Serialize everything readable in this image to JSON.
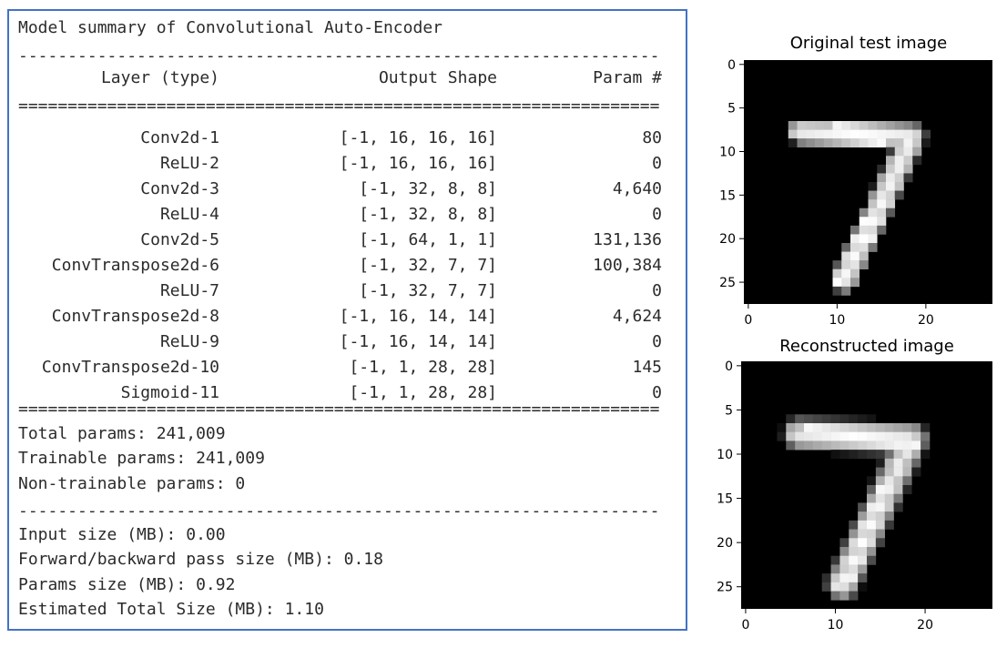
{
  "summary": {
    "title": "Model summary of Convolutional Auto-Encoder",
    "separator_dash": "-----------------------------------------------------------------",
    "separator_eq": "=================================================================",
    "headers": {
      "layer": "Layer (type)",
      "shape": "Output Shape",
      "param": "Param #"
    },
    "rows": [
      {
        "layer": "Conv2d-1",
        "shape": "[-1, 16, 16, 16]",
        "param": "80"
      },
      {
        "layer": "ReLU-2",
        "shape": "[-1, 16, 16, 16]",
        "param": "0"
      },
      {
        "layer": "Conv2d-3",
        "shape": "[-1, 32, 8, 8]",
        "param": "4,640"
      },
      {
        "layer": "ReLU-4",
        "shape": "[-1, 32, 8, 8]",
        "param": "0"
      },
      {
        "layer": "Conv2d-5",
        "shape": "[-1, 64, 1, 1]",
        "param": "131,136"
      },
      {
        "layer": "ConvTranspose2d-6",
        "shape": "[-1, 32, 7, 7]",
        "param": "100,384"
      },
      {
        "layer": "ReLU-7",
        "shape": "[-1, 32, 7, 7]",
        "param": "0"
      },
      {
        "layer": "ConvTranspose2d-8",
        "shape": "[-1, 16, 14, 14]",
        "param": "4,624"
      },
      {
        "layer": "ReLU-9",
        "shape": "[-1, 16, 14, 14]",
        "param": "0"
      },
      {
        "layer": "ConvTranspose2d-10",
        "shape": "[-1, 1, 28, 28]",
        "param": "145"
      },
      {
        "layer": "Sigmoid-11",
        "shape": "[-1, 1, 28, 28]",
        "param": "0"
      }
    ],
    "totals": [
      "Total params: 241,009",
      "Trainable params: 241,009",
      "Non-trainable params: 0"
    ],
    "sizes": [
      "Input size (MB): 0.00",
      "Forward/backward pass size (MB): 0.18",
      "Params size (MB): 0.92",
      "Estimated Total Size (MB): 1.10"
    ]
  },
  "figures": {
    "original_title": "Original test image",
    "reconstructed_title": "Reconstructed image",
    "y_ticks": [
      "0",
      "5",
      "10",
      "15",
      "20",
      "25"
    ],
    "x_ticks": [
      "0",
      "10",
      "20"
    ]
  }
}
